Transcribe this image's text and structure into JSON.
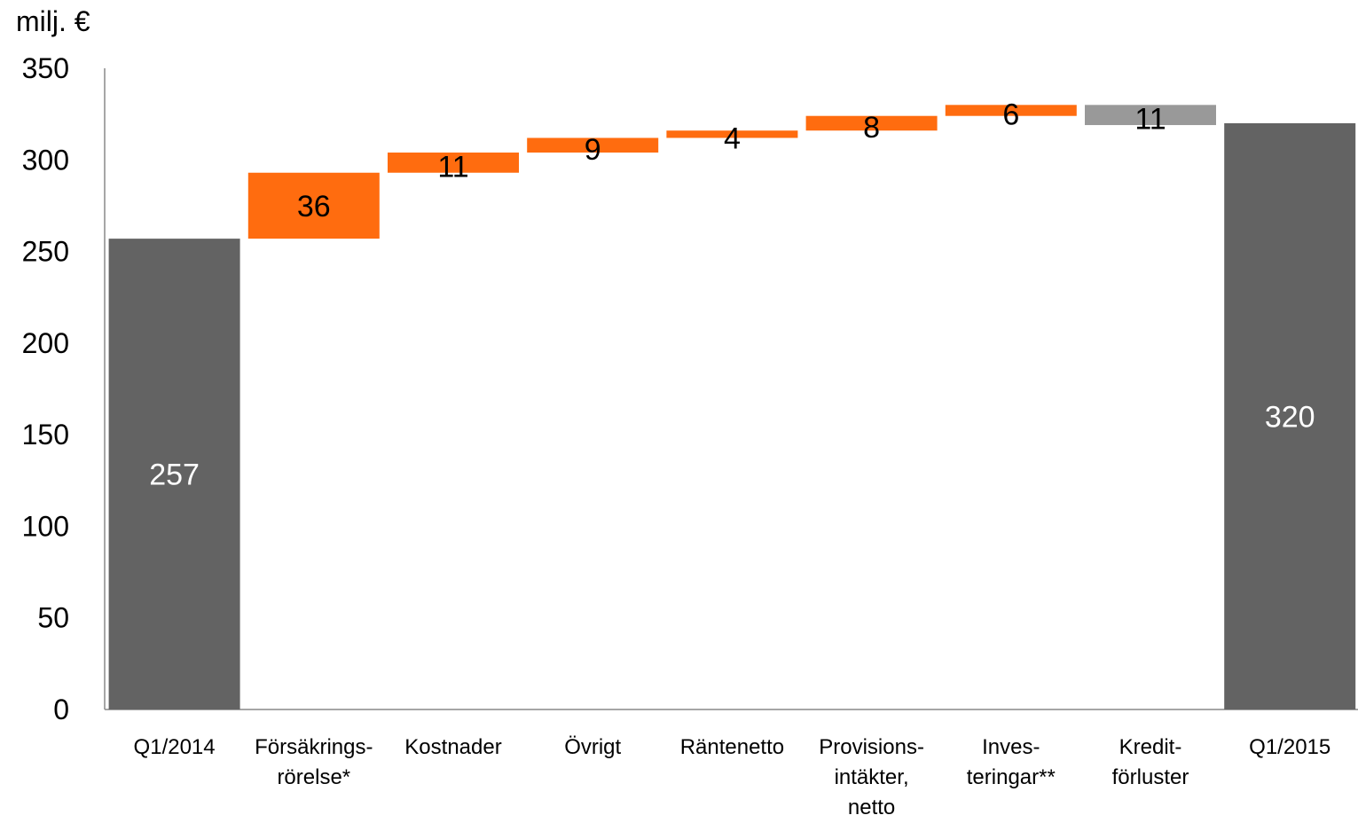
{
  "chart_data": {
    "type": "bar",
    "subtype": "waterfall",
    "unit_label": "milj. €",
    "ylim": [
      0,
      350
    ],
    "yticks": [
      "0",
      "50",
      "100",
      "150",
      "200",
      "250",
      "300",
      "350"
    ],
    "grid": false,
    "categories": [
      [
        "Q1/2014"
      ],
      [
        "Försäkrings-",
        "rörelse*"
      ],
      [
        "Kostnader"
      ],
      [
        "Övrigt"
      ],
      [
        "Räntenetto"
      ],
      [
        "Provisions-",
        "intäkter,",
        "netto"
      ],
      [
        "Inves-",
        "teringar**"
      ],
      [
        "Kredit-",
        "förluster"
      ],
      [
        "Q1/2015"
      ]
    ],
    "bars": [
      {
        "kind": "total",
        "base": 0,
        "top": 257,
        "label": "257"
      },
      {
        "kind": "increase",
        "base": 257,
        "top": 293,
        "label": "36"
      },
      {
        "kind": "increase",
        "base": 293,
        "top": 304,
        "label": "11"
      },
      {
        "kind": "increase",
        "base": 304,
        "top": 312,
        "label": "9"
      },
      {
        "kind": "increase",
        "base": 312,
        "top": 316,
        "label": "4"
      },
      {
        "kind": "increase",
        "base": 316,
        "top": 324,
        "label": "8"
      },
      {
        "kind": "increase",
        "base": 324,
        "top": 330,
        "label": "6"
      },
      {
        "kind": "decrease",
        "base": 319,
        "top": 330,
        "label": "11"
      },
      {
        "kind": "total",
        "base": 0,
        "top": 320,
        "label": "320"
      }
    ],
    "colors": {
      "total": "#636363",
      "increase": "#ff6c0f",
      "decrease": "#999999",
      "axis": "#888888",
      "text": "#000000",
      "label_on_dark": "#ffffff"
    }
  }
}
